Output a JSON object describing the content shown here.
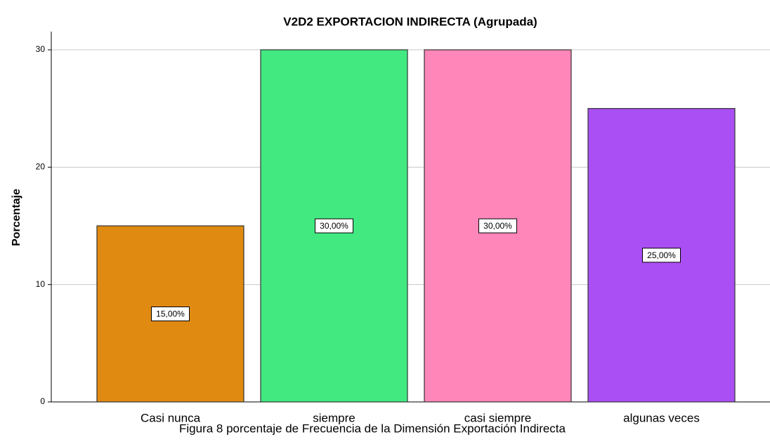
{
  "chart_data": {
    "type": "bar",
    "title": "V2D2 EXPORTACION INDIRECTA (Agrupada)",
    "y_label": "Porcentaje",
    "categories": [
      "Casi nunca",
      "siempre",
      "casi siempre",
      "algunas veces"
    ],
    "values": [
      15,
      30,
      30,
      25
    ],
    "value_labels": [
      "15,00%",
      "30,00%",
      "30,00%",
      "25,00%"
    ],
    "colors": [
      "#e08a12",
      "#42e981",
      "#ff86b9",
      "#aa4ff3"
    ],
    "ylim": [
      0,
      30
    ],
    "yticks": [
      0,
      10,
      20,
      30
    ],
    "grid": true,
    "caption": "Figura 8 porcentaje de Frecuencia de la Dimensión Exportación Indirecta"
  }
}
